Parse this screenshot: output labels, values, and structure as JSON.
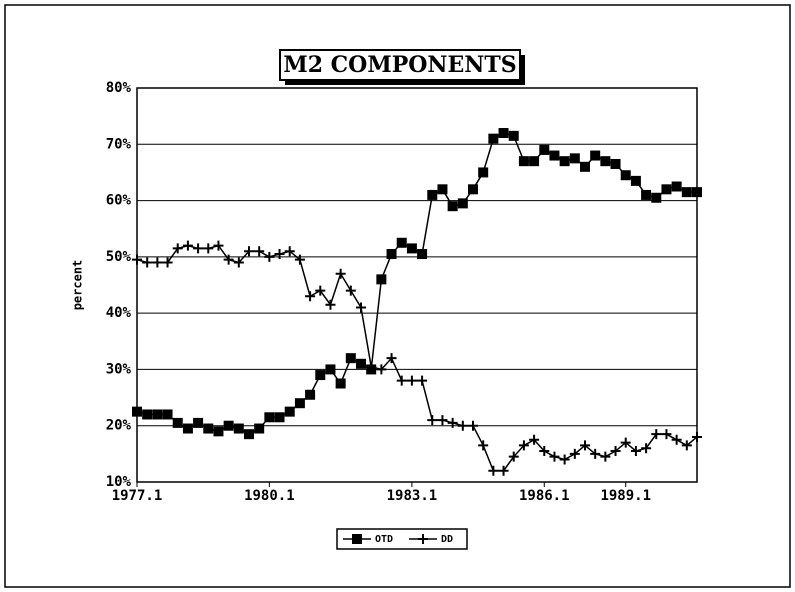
{
  "chart_data": {
    "type": "line",
    "title": "M2 COMPONENTS",
    "y_label": "percent",
    "categories": [
      "1977.1",
      null,
      null,
      null,
      null,
      null,
      null,
      null,
      null,
      null,
      null,
      null,
      null,
      "1980.1",
      null,
      null,
      null,
      null,
      null,
      null,
      null,
      null,
      null,
      null,
      null,
      null,
      null,
      "1983.1",
      null,
      null,
      null,
      null,
      null,
      null,
      null,
      null,
      null,
      null,
      null,
      null,
      "1986.1",
      null,
      null,
      null,
      null,
      null,
      null,
      null,
      "1989.1",
      null,
      null,
      null,
      null,
      null,
      null,
      null
    ],
    "series": [
      {
        "name": "OTD",
        "color": "#000000",
        "marker": "square",
        "values": [
          22.5,
          22,
          22,
          22,
          20.5,
          19.5,
          20.5,
          19.5,
          19,
          20,
          19.5,
          18.5,
          19.5,
          21.5,
          21.5,
          22.5,
          24,
          25.5,
          29,
          30,
          27.5,
          32,
          31,
          30,
          46,
          50.5,
          52.5,
          51.5,
          50.5,
          61,
          62,
          59,
          59.5,
          62,
          65,
          71,
          72,
          71.5,
          67,
          67,
          69,
          68,
          67,
          67.5,
          66,
          68,
          67,
          66.5,
          64.5,
          63.5,
          61,
          60.5,
          62,
          62.5,
          61.5,
          61.5
        ]
      },
      {
        "name": "DD",
        "color": "#000000",
        "marker": "plus",
        "values": [
          49.5,
          49,
          49,
          49,
          51.5,
          52,
          51.5,
          51.5,
          52,
          49.5,
          49,
          51,
          51,
          50,
          50.5,
          51,
          49.5,
          43,
          44,
          41.5,
          47,
          44,
          41,
          30.5,
          30,
          32,
          28,
          28,
          28,
          21,
          21,
          20.5,
          20,
          20,
          16.5,
          12,
          12,
          14.5,
          16.5,
          17.5,
          15.5,
          14.5,
          14,
          15,
          16.5,
          15,
          14.5,
          15.5,
          17,
          15.5,
          16,
          18.5,
          18.5,
          17.5,
          16.5,
          18
        ]
      }
    ],
    "ylim": [
      10,
      80
    ],
    "yticks": [
      {
        "value": 10,
        "label": "10%"
      },
      {
        "value": 20,
        "label": "20%"
      },
      {
        "value": 30,
        "label": "30%"
      },
      {
        "value": 40,
        "label": "40%"
      },
      {
        "value": 50,
        "label": "50%"
      },
      {
        "value": 60,
        "label": "60%"
      },
      {
        "value": 70,
        "label": "70%"
      },
      {
        "value": 80,
        "label": "80%"
      }
    ],
    "grid": true,
    "legend": "bottom"
  }
}
